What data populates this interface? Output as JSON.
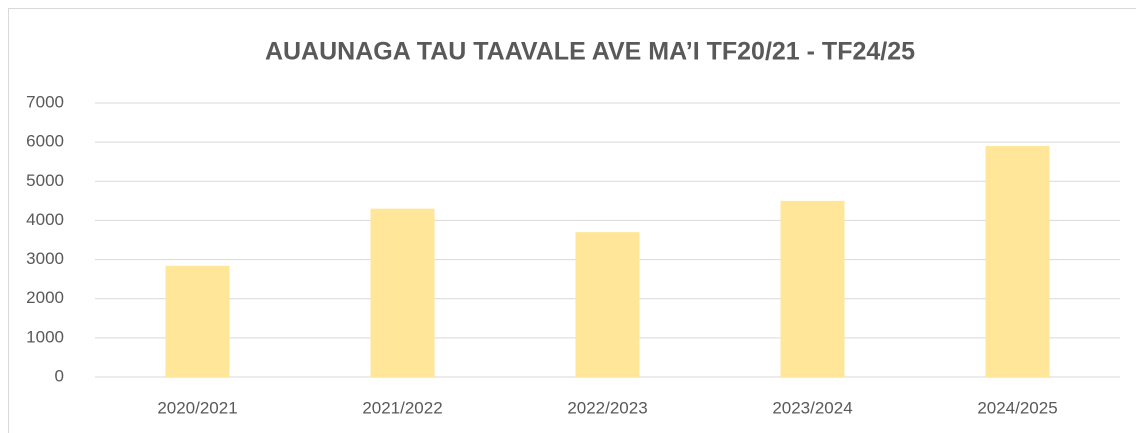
{
  "chart_data": {
    "type": "bar",
    "title": "AUAUNAGA TAU TAAVALE AVE MA’I TF20/21 - TF24/25",
    "categories": [
      "2020/2021",
      "2021/2022",
      "2022/2023",
      "2023/2024",
      "2024/2025"
    ],
    "values": [
      2840,
      4300,
      3700,
      4500,
      5900
    ],
    "color": "#ffe699",
    "ylim": [
      0,
      7000
    ],
    "yticks": [
      0,
      1000,
      2000,
      3000,
      4000,
      5000,
      6000,
      7000
    ],
    "grid": true
  }
}
